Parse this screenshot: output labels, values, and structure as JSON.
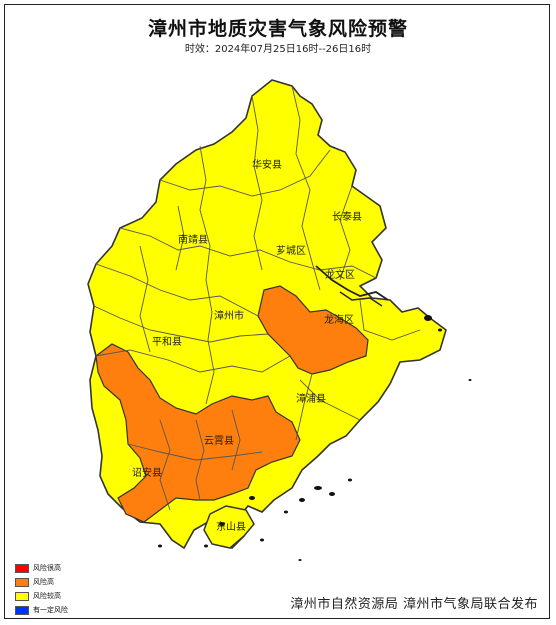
{
  "title": "漳州市地质灾害气象风险预警",
  "subtitle": "时效：2024年07月25日16时--26日16时",
  "publisher": "漳州市自然资源局 漳州市气象局联合发布",
  "colors": {
    "very_high": "#ff0000",
    "high": "#ff7f0e",
    "elevated": "#ffff00",
    "some": "#0033ff",
    "border": "#555555",
    "coast": "#333333"
  },
  "legend": [
    {
      "label": "风险很高",
      "color": "#ff0000"
    },
    {
      "label": "风险高",
      "color": "#ff7f0e"
    },
    {
      "label": "风险较高",
      "color": "#ffff00"
    },
    {
      "label": "有一定风险",
      "color": "#0033ff"
    }
  ],
  "regions": {
    "huaan": "华安县",
    "changtai": "长泰县",
    "nanjing": "南靖县",
    "xiangcheng": "芗城区",
    "longwen": "龙文区",
    "zhangzhou": "漳州市",
    "longhai": "龙海区",
    "pinghe": "平和县",
    "zhangpu": "漳浦县",
    "yunxiao": "云霄县",
    "zhaoan": "诏安县",
    "dongshan": "东山县"
  }
}
